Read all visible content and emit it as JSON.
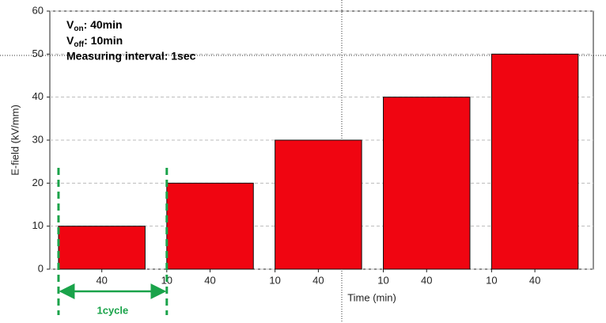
{
  "chart_data": {
    "type": "bar",
    "ylabel": "E-field (kV/mm)",
    "xlabel": "Time (min)",
    "x_start": [
      0,
      50,
      100,
      150,
      200
    ],
    "x_end": [
      40,
      90,
      140,
      190,
      240
    ],
    "values": [
      10,
      20,
      30,
      40,
      50
    ],
    "color": "#f00511",
    "xlim": [
      -4,
      247
    ],
    "ylim": [
      0,
      60
    ],
    "yticks": [
      0,
      10,
      20,
      30,
      40,
      50,
      60
    ],
    "xticks": [
      {
        "value": 20,
        "label": "40"
      },
      {
        "value": 50,
        "label": "10"
      },
      {
        "value": 70,
        "label": "40"
      },
      {
        "value": 100,
        "label": "10"
      },
      {
        "value": 120,
        "label": "40"
      },
      {
        "value": 150,
        "label": "10"
      },
      {
        "value": 170,
        "label": "40"
      },
      {
        "value": 200,
        "label": "10"
      },
      {
        "value": 220,
        "label": "40"
      }
    ],
    "grid": true,
    "annotations": [
      {
        "main": "V",
        "sub": "on",
        "suffix": ": 40min"
      },
      {
        "main": "V",
        "sub": "off",
        "suffix": ": 10min"
      },
      "Measuring interval: 1sec"
    ],
    "cycle": {
      "label": "1cycle",
      "from": 0,
      "to": 50,
      "color": "#1aa34a"
    }
  }
}
